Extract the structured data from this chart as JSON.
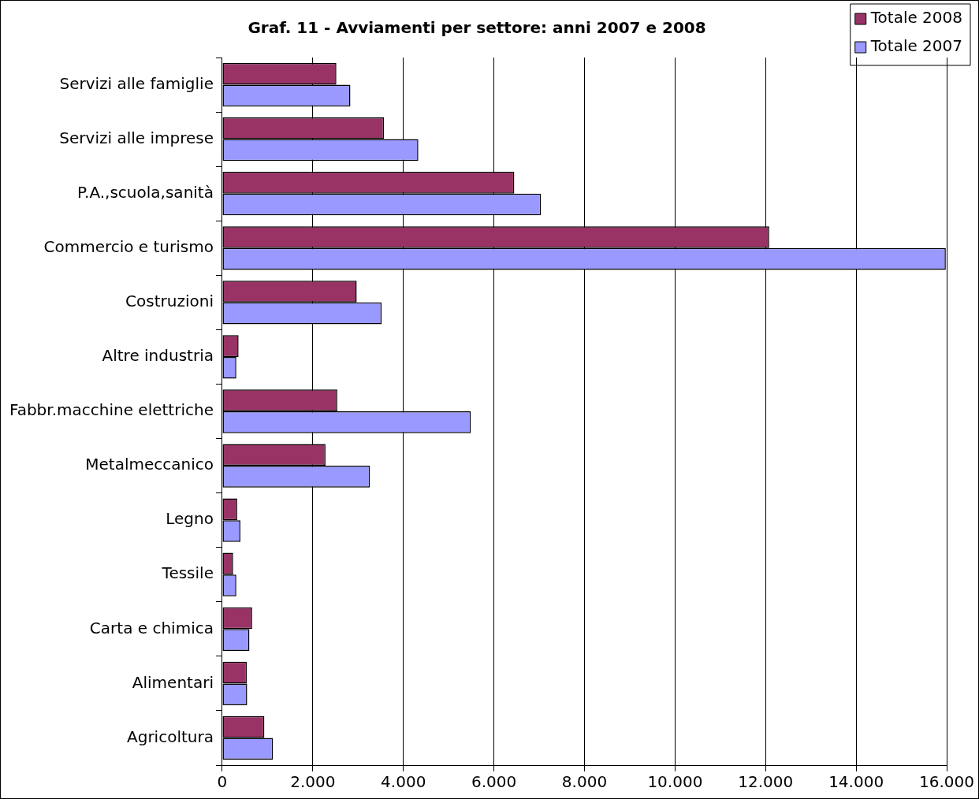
{
  "chart_data": {
    "type": "bar",
    "orientation": "horizontal",
    "title": "Graf. 11 - Avviamenti per settore: anni 2007 e 2008",
    "categories": [
      "Servizi alle famiglie",
      "Servizi alle imprese",
      "P.A.,scuola,sanità",
      "Commercio e turismo",
      "Costruzioni",
      "Altre industria",
      "Fabbr.macchine elettriche",
      "Metalmeccanico",
      "Legno",
      "Tessile",
      "Carta e chimica",
      "Alimentari",
      "Agricoltura"
    ],
    "series": [
      {
        "name": "Totale 2008",
        "color": "#993366",
        "values": [
          2520,
          3570,
          6450,
          12080,
          2970,
          360,
          2540,
          2280,
          330,
          240,
          660,
          540,
          930
        ]
      },
      {
        "name": "Totale 2007",
        "color": "#9999ff",
        "values": [
          2830,
          4330,
          7040,
          15980,
          3520,
          310,
          5490,
          3260,
          400,
          310,
          600,
          550,
          1120
        ]
      }
    ],
    "xlim": [
      0,
      16000
    ],
    "xticks": [
      0,
      {
        "value": 2000,
        "label": "2.000"
      },
      {
        "value": 4000,
        "label": "4.000"
      },
      {
        "value": 6000,
        "label": "6.000"
      },
      {
        "value": 8000,
        "label": "8.000"
      },
      {
        "value": 10000,
        "label": "10.000"
      },
      {
        "value": 12000,
        "label": "12.000"
      },
      {
        "value": 14000,
        "label": "14.000"
      },
      {
        "value": 16000,
        "label": "16.000"
      }
    ],
    "grid": "x",
    "legend": "top right"
  }
}
